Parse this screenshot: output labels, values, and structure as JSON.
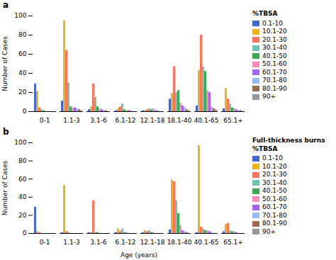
{
  "chart_data": [
    {
      "type": "bar",
      "title": "a",
      "legend_title": "%TBSA",
      "ylabel": "Number of Cases",
      "categories": [
        "0-1",
        "1.1-3",
        "3.1-6",
        "6.1-12",
        "12.1-18",
        "18.1-40",
        "40.1-65",
        "65.1+"
      ],
      "series": [
        {
          "name": "0.1-10",
          "values": [
            29,
            11,
            2,
            1,
            1,
            13,
            6,
            3
          ]
        },
        {
          "name": "10.1-20",
          "values": [
            21,
            95,
            5,
            3,
            1,
            19,
            43,
            24
          ]
        },
        {
          "name": "20.1-30",
          "values": [
            4,
            64,
            29,
            5,
            2,
            47,
            80,
            13
          ]
        },
        {
          "name": "30.1-40",
          "values": [
            2,
            30,
            15,
            8,
            3,
            20,
            47,
            8
          ]
        },
        {
          "name": "40.1-50",
          "values": [
            1,
            5,
            5,
            2,
            2,
            22,
            42,
            4
          ]
        },
        {
          "name": "50.1-60",
          "values": [
            0,
            4,
            3,
            1,
            3,
            9,
            22,
            3
          ]
        },
        {
          "name": "60.1-70",
          "values": [
            0,
            4,
            2,
            1,
            1,
            6,
            20,
            2
          ]
        },
        {
          "name": "70.1-80",
          "values": [
            0,
            3,
            1,
            1,
            1,
            4,
            5,
            1
          ]
        },
        {
          "name": "80.1-90",
          "values": [
            0,
            2,
            1,
            0,
            0,
            2,
            3,
            1
          ]
        },
        {
          "name": "90+",
          "values": [
            0,
            1,
            0,
            0,
            0,
            1,
            2,
            0
          ]
        }
      ],
      "ylim": [
        0,
        100
      ],
      "yticks": [
        0,
        20,
        40,
        60,
        80,
        100
      ],
      "grid": false,
      "legend": "right"
    },
    {
      "type": "bar",
      "title": "b",
      "legend_title": "Full-thickness burns %TBSA",
      "ylabel": "Number of Cases",
      "xlabel": "Age (years)",
      "categories": [
        "0-1",
        "1.1-3",
        "3.1-6",
        "6.1-12",
        "12.1-18",
        "18.1-40",
        "40.1-65",
        "65.1+"
      ],
      "series": [
        {
          "name": "0.1-10",
          "values": [
            29,
            1,
            1,
            1,
            1,
            4,
            1,
            2
          ]
        },
        {
          "name": "10.1-20",
          "values": [
            2,
            53,
            1,
            5,
            3,
            59,
            97,
            10
          ]
        },
        {
          "name": "20.1-30",
          "values": [
            1,
            2,
            36,
            2,
            2,
            57,
            7,
            11
          ]
        },
        {
          "name": "30.1-40",
          "values": [
            0,
            1,
            1,
            5,
            3,
            36,
            5,
            3
          ]
        },
        {
          "name": "40.1-50",
          "values": [
            0,
            0,
            1,
            1,
            1,
            22,
            3,
            2
          ]
        },
        {
          "name": "50.1-60",
          "values": [
            0,
            0,
            0,
            1,
            1,
            9,
            3,
            2
          ]
        },
        {
          "name": "60.1-70",
          "values": [
            0,
            0,
            0,
            0,
            0,
            3,
            2,
            1
          ]
        },
        {
          "name": "70.1-80",
          "values": [
            0,
            0,
            0,
            0,
            0,
            2,
            1,
            0
          ]
        },
        {
          "name": "80.1-90",
          "values": [
            0,
            0,
            0,
            0,
            0,
            1,
            0,
            0
          ]
        },
        {
          "name": "90+",
          "values": [
            0,
            0,
            0,
            0,
            0,
            0,
            0,
            0
          ]
        }
      ],
      "ylim": [
        0,
        100
      ],
      "yticks": [
        0,
        20,
        40,
        60,
        80,
        100
      ],
      "grid": false,
      "legend": "right"
    }
  ]
}
